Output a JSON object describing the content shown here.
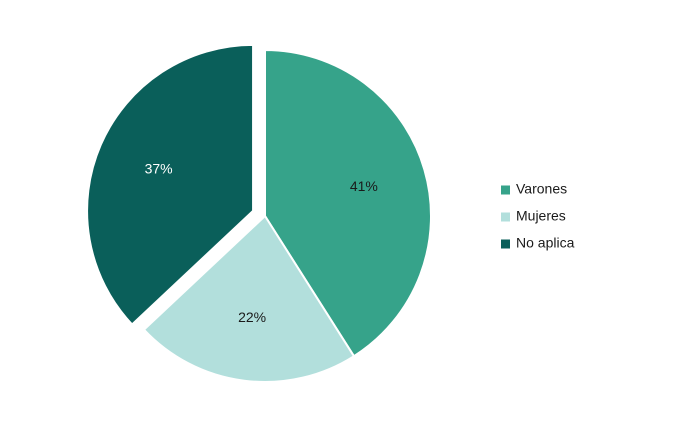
{
  "chart_data": {
    "type": "pie",
    "categories": [
      "Varones",
      "Mujeres",
      "No aplica"
    ],
    "values": [
      41,
      22,
      37
    ],
    "labels": [
      "41%",
      "22%",
      "37%"
    ],
    "colors": [
      "#36a38a",
      "#b2dfdc",
      "#0a5f5a"
    ],
    "label_colors": [
      "#1a1a1a",
      "#1a1a1a",
      "#ffffff"
    ],
    "exploded": [
      false,
      false,
      true
    ],
    "legend": {
      "position": "right"
    }
  }
}
